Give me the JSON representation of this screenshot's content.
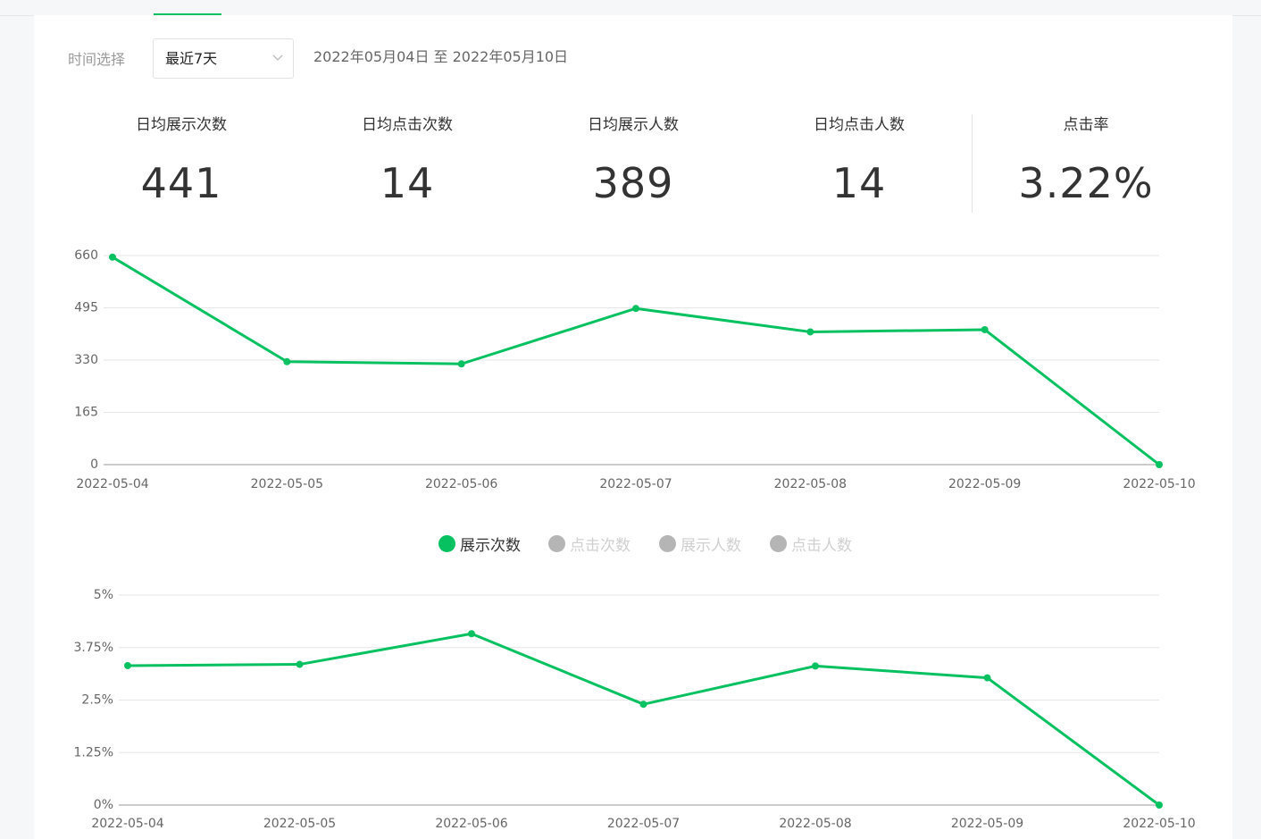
{
  "filter": {
    "label": "时间选择",
    "selected": "最近7天",
    "date_range": "2022年05月04日 至 2022年05月10日"
  },
  "stats": [
    {
      "label": "日均展示次数",
      "value": "441"
    },
    {
      "label": "日均点击次数",
      "value": "14"
    },
    {
      "label": "日均展示人数",
      "value": "389"
    },
    {
      "label": "日均点击人数",
      "value": "14"
    },
    {
      "label": "点击率",
      "value": "3.22%"
    }
  ],
  "legend": [
    {
      "label": "展示次数",
      "active": true,
      "color": "#07c160"
    },
    {
      "label": "点击次数",
      "active": false,
      "color": "#b5b5b5"
    },
    {
      "label": "展示人数",
      "active": false,
      "color": "#b5b5b5"
    },
    {
      "label": "点击人数",
      "active": false,
      "color": "#b5b5b5"
    }
  ],
  "colors": {
    "accent": "#07c160",
    "grid": "#e6e6e6",
    "axis": "#999999",
    "tick_text": "#666666"
  },
  "chart_data": [
    {
      "type": "line",
      "title": "",
      "xlabel": "",
      "ylabel": "",
      "categories": [
        "2022-05-04",
        "2022-05-05",
        "2022-05-06",
        "2022-05-07",
        "2022-05-08",
        "2022-05-09",
        "2022-05-10"
      ],
      "series": [
        {
          "name": "展示次数",
          "values": [
            655,
            325,
            318,
            493,
            419,
            426,
            0
          ]
        }
      ],
      "ylim": [
        0,
        660
      ],
      "yticks": [
        "0",
        "165",
        "330",
        "495",
        "660"
      ],
      "ytick_values": [
        0,
        165,
        330,
        495,
        660
      ]
    },
    {
      "type": "line",
      "title": "",
      "xlabel": "",
      "ylabel": "",
      "categories": [
        "2022-05-04",
        "2022-05-05",
        "2022-05-06",
        "2022-05-07",
        "2022-05-08",
        "2022-05-09",
        "2022-05-10"
      ],
      "series": [
        {
          "name": "点击率",
          "values": [
            3.32,
            3.35,
            4.08,
            2.4,
            3.31,
            3.03,
            0
          ]
        }
      ],
      "ylim": [
        0,
        5
      ],
      "yticks": [
        "0%",
        "1.25%",
        "2.5%",
        "3.75%",
        "5%"
      ],
      "ytick_values": [
        0,
        1.25,
        2.5,
        3.75,
        5
      ]
    }
  ]
}
